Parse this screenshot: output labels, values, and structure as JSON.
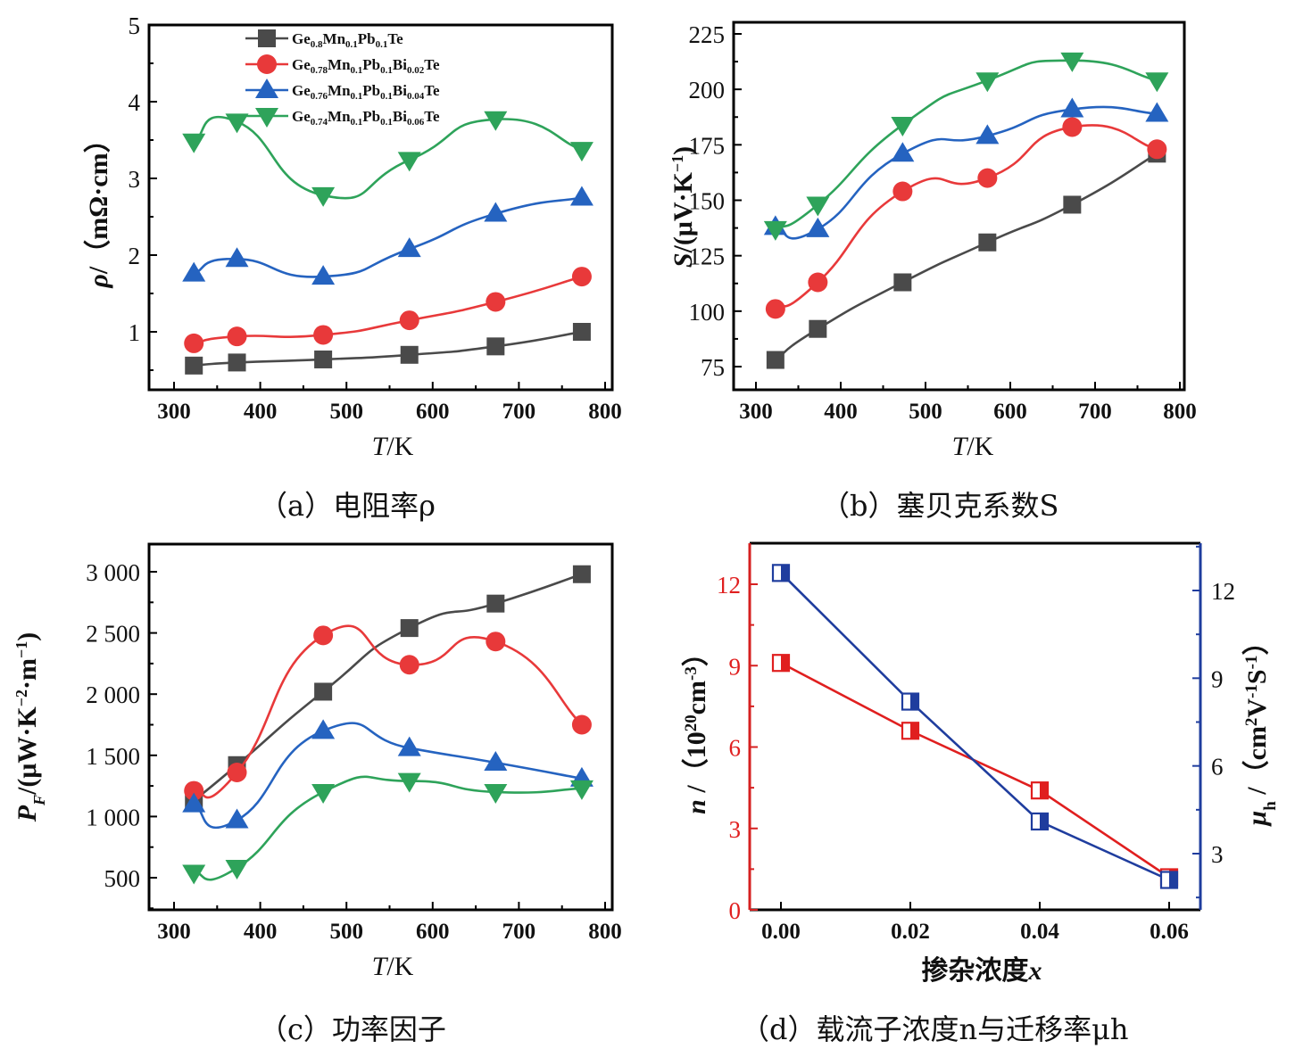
{
  "captions": {
    "a": "（a）电阻率ρ",
    "b": "（b）塞贝克系数S",
    "c": "（c）功率因子",
    "d": "（d）载流子浓度n与迁移率μh"
  },
  "legend": [
    {
      "label": "Ge0.8Mn0.1Pb0.1Te",
      "parts": [
        [
          "Ge",
          ""
        ],
        [
          "0.8",
          "sub"
        ],
        [
          "Mn",
          ""
        ],
        [
          "0.1",
          "sub"
        ],
        [
          "Pb",
          ""
        ],
        [
          "0.1",
          "sub"
        ],
        [
          "Te",
          ""
        ]
      ],
      "color": "#4a4a4a",
      "marker": "square"
    },
    {
      "label": "Ge0.78Mn0.1Pb0.1Bi0.02Te",
      "parts": [
        [
          "Ge",
          ""
        ],
        [
          "0.78",
          "sub"
        ],
        [
          "Mn",
          ""
        ],
        [
          "0.1",
          "sub"
        ],
        [
          "Pb",
          ""
        ],
        [
          "0.1",
          "sub"
        ],
        [
          "Bi",
          ""
        ],
        [
          "0.02",
          "sub"
        ],
        [
          "Te",
          ""
        ]
      ],
      "color": "#e8393a",
      "marker": "circle"
    },
    {
      "label": "Ge0.76Mn0.1Pb0.1Bi0.04Te",
      "parts": [
        [
          "Ge",
          ""
        ],
        [
          "0.76",
          "sub"
        ],
        [
          "Mn",
          ""
        ],
        [
          "0.1",
          "sub"
        ],
        [
          "Pb",
          ""
        ],
        [
          "0.1",
          "sub"
        ],
        [
          "Bi",
          ""
        ],
        [
          "0.04",
          "sub"
        ],
        [
          "Te",
          ""
        ]
      ],
      "color": "#2563c0",
      "marker": "triangle-up"
    },
    {
      "label": "Ge0.74Mn0.1Pb0.1Bi0.06Te",
      "parts": [
        [
          "Ge",
          ""
        ],
        [
          "0.74",
          "sub"
        ],
        [
          "Mn",
          ""
        ],
        [
          "0.1",
          "sub"
        ],
        [
          "Pb",
          ""
        ],
        [
          "0.1",
          "sub"
        ],
        [
          "Bi",
          ""
        ],
        [
          "0.06",
          "sub"
        ],
        [
          "Te",
          ""
        ]
      ],
      "color": "#2ea35a",
      "marker": "triangle-down"
    }
  ],
  "chart_data": [
    {
      "id": "a",
      "type": "line",
      "title": "（a）电阻率ρ",
      "xlabel": "T/K",
      "ylabel": "ρ/（mΩ·cm）",
      "xlim": [
        272,
        810
      ],
      "ylim": [
        0.24,
        5
      ],
      "xticks": [
        300,
        400,
        500,
        600,
        700,
        800
      ],
      "yticks": [
        1,
        2,
        3,
        4,
        5
      ],
      "grid": false,
      "legend_position": "top-center",
      "x": [
        323,
        373,
        473,
        573,
        673,
        773
      ],
      "series": [
        {
          "name": "Ge0.8Mn0.1Pb0.1Te",
          "values": [
            0.56,
            0.6,
            0.64,
            0.7,
            0.81,
            1.0
          ]
        },
        {
          "name": "Ge0.78Mn0.1Pb0.1Bi0.02Te",
          "values": [
            0.85,
            0.94,
            0.96,
            1.15,
            1.39,
            1.72
          ]
        },
        {
          "name": "Ge0.76Mn0.1Pb0.1Bi0.04Te",
          "values": [
            1.76,
            1.95,
            1.72,
            2.08,
            2.54,
            2.75
          ]
        },
        {
          "name": "Ge0.74Mn0.1Pb0.1Bi0.06Te",
          "values": [
            3.48,
            3.74,
            2.78,
            3.24,
            3.77,
            3.37
          ]
        }
      ]
    },
    {
      "id": "b",
      "type": "line",
      "title": "（b）塞贝克系数S",
      "xlabel": "T/K",
      "ylabel": "S/(μV·K⁻¹)",
      "xlim": [
        272,
        810
      ],
      "ylim": [
        65,
        230
      ],
      "xticks": [
        300,
        400,
        500,
        600,
        700,
        800
      ],
      "yticks": [
        75,
        100,
        125,
        150,
        175,
        200,
        225
      ],
      "grid": false,
      "x": [
        323,
        373,
        473,
        573,
        673,
        773
      ],
      "series": [
        {
          "name": "Ge0.8Mn0.1Pb0.1Te",
          "values": [
            78,
            92,
            113,
            131,
            148,
            171
          ]
        },
        {
          "name": "Ge0.78Mn0.1Pb0.1Bi0.02Te",
          "values": [
            101,
            113,
            154,
            160,
            183,
            173
          ]
        },
        {
          "name": "Ge0.76Mn0.1Pb0.1Bi0.04Te",
          "values": [
            138,
            137,
            171,
            179,
            191,
            189
          ]
        },
        {
          "name": "Ge0.74Mn0.1Pb0.1Bi0.06Te",
          "values": [
            137,
            148,
            184,
            204,
            213,
            204
          ]
        }
      ]
    },
    {
      "id": "c",
      "type": "line",
      "title": "（c）功率因子",
      "xlabel": "T/K",
      "ylabel": "PF/(μW·K⁻²·m⁻¹)",
      "xlim": [
        272,
        810
      ],
      "ylim": [
        250,
        3230
      ],
      "xticks": [
        300,
        400,
        500,
        600,
        700,
        800
      ],
      "yticks": [
        500,
        1000,
        1500,
        2000,
        2500,
        3000
      ],
      "ytick_labels": [
        "500",
        "1 000",
        "1 500",
        "2 000",
        "2 500",
        "3 000"
      ],
      "grid": false,
      "x": [
        323,
        373,
        473,
        573,
        673,
        773
      ],
      "series": [
        {
          "name": "Ge0.8Mn0.1Pb0.1Te",
          "values": [
            1130,
            1420,
            2020,
            2540,
            2740,
            2980
          ]
        },
        {
          "name": "Ge0.78Mn0.1Pb0.1Bi0.02Te",
          "values": [
            1210,
            1360,
            2480,
            2240,
            2430,
            1750
          ]
        },
        {
          "name": "Ge0.76Mn0.1Pb0.1Bi0.04Te",
          "values": [
            1100,
            970,
            1700,
            1560,
            1440,
            1310
          ]
        },
        {
          "name": "Ge0.74Mn0.1Pb0.1Bi0.06Te",
          "values": [
            540,
            580,
            1200,
            1290,
            1200,
            1230
          ]
        }
      ]
    },
    {
      "id": "d",
      "type": "line",
      "title": "（d）载流子浓度n与迁移率μh",
      "xlabel": "掺杂浓度x",
      "ylabel_left": "n/（10²⁰cm⁻³）",
      "ylabel_right": "μh/（cm²V⁻¹S⁻¹）",
      "xlim": [
        -0.005,
        0.065
      ],
      "ylim_left": [
        0,
        13.5
      ],
      "ylim_right": [
        1.2,
        13.6
      ],
      "xticks": [
        0.0,
        0.02,
        0.04,
        0.06
      ],
      "xtick_labels": [
        "0.00",
        "0.02",
        "0.04",
        "0.06"
      ],
      "yticks_left": [
        0,
        3,
        6,
        9,
        12
      ],
      "yticks_right": [
        3,
        6,
        9,
        12
      ],
      "grid": false,
      "x": [
        0.0,
        0.02,
        0.04,
        0.06
      ],
      "series": [
        {
          "name": "n",
          "axis": "left",
          "color": "#e01f1f",
          "values": [
            9.1,
            6.6,
            4.4,
            1.2
          ]
        },
        {
          "name": "μh",
          "axis": "right",
          "color": "#1f3d9e",
          "values": [
            12.6,
            8.2,
            4.1,
            2.1
          ]
        }
      ]
    }
  ]
}
